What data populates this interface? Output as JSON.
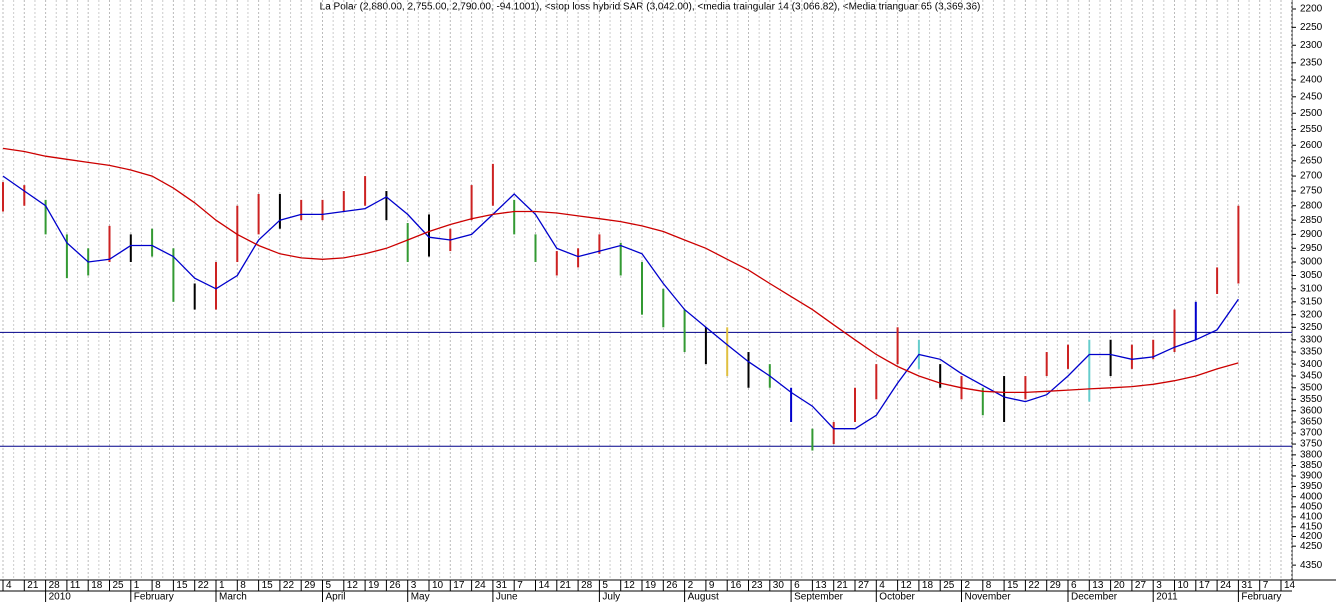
{
  "chart_data": {
    "type": "hilo",
    "title": "La Polar (2,880.00, 2,755.00, 2,790.00, -94.1001), <stop loss hybrid SAR (3,042.00), <media traingular 14 (3,066.82), <Media trianguar 65 (3,369.36)",
    "categories": [
      "4",
      "21",
      "28",
      "11",
      "18",
      "25",
      "1",
      "8",
      "15",
      "22",
      "1",
      "8",
      "15",
      "22",
      "29",
      "5",
      "12",
      "19",
      "26",
      "3",
      "10",
      "17",
      "24",
      "31",
      "7",
      "14",
      "21",
      "28",
      "5",
      "12",
      "19",
      "26",
      "2",
      "9",
      "16",
      "23",
      "30",
      "6",
      "13",
      "21",
      "27",
      "4",
      "12",
      "18",
      "25",
      "2",
      "8",
      "15",
      "22",
      "29",
      "6",
      "13",
      "20",
      "27",
      "3",
      "10",
      "17",
      "24",
      "31",
      "7",
      "14"
    ],
    "months": [
      null,
      null,
      "2010",
      null,
      null,
      null,
      "February",
      null,
      null,
      null,
      "March",
      null,
      null,
      null,
      null,
      "April",
      null,
      null,
      null,
      "May",
      null,
      null,
      null,
      "June",
      null,
      null,
      null,
      null,
      "July",
      null,
      null,
      null,
      "August",
      null,
      null,
      null,
      null,
      "September",
      null,
      null,
      null,
      "October",
      null,
      null,
      null,
      "November",
      null,
      null,
      null,
      null,
      "December",
      null,
      null,
      null,
      "2011",
      null,
      null,
      null,
      "February",
      null,
      null
    ],
    "low": [
      2720,
      2730,
      2780,
      2900,
      2950,
      2870,
      2900,
      2880,
      2950,
      3080,
      3000,
      2800,
      2760,
      2760,
      2780,
      2780,
      2750,
      2700,
      2750,
      2860,
      2830,
      2880,
      2730,
      2660,
      2780,
      2900,
      2960,
      2950,
      2900,
      2930,
      3000,
      3100,
      3180,
      3250,
      3250,
      3350,
      3400,
      3500,
      3680,
      3650,
      3500,
      3400,
      3250,
      3300,
      3400,
      3450,
      3500,
      3450,
      3450,
      3350,
      3320,
      3300,
      3300,
      3320,
      3300,
      3180,
      3150,
      3020,
      2800,
      null,
      null
    ],
    "high": [
      2820,
      2800,
      2900,
      3060,
      3050,
      3000,
      3000,
      2980,
      3150,
      3180,
      3180,
      3000,
      2900,
      2880,
      2850,
      2850,
      2820,
      2800,
      2850,
      3000,
      2980,
      2960,
      2850,
      2800,
      2900,
      3000,
      3050,
      3020,
      2970,
      3050,
      3200,
      3250,
      3350,
      3400,
      3450,
      3500,
      3500,
      3650,
      3780,
      3750,
      3650,
      3550,
      3400,
      3420,
      3500,
      3550,
      3620,
      3650,
      3550,
      3450,
      3420,
      3560,
      3450,
      3420,
      3380,
      3350,
      3300,
      3120,
      3080,
      null,
      null
    ],
    "bar_colors": [
      "#cc2222",
      "#cc2222",
      "#339933",
      "#339933",
      "#339933",
      "#cc2222",
      "#000000",
      "#339933",
      "#339933",
      "#000000",
      "#cc2222",
      "#cc2222",
      "#cc2222",
      "#000000",
      "#cc2222",
      "#cc2222",
      "#cc2222",
      "#cc2222",
      "#000000",
      "#339933",
      "#000000",
      "#cc2222",
      "#cc2222",
      "#cc2222",
      "#339933",
      "#339933",
      "#cc2222",
      "#cc2222",
      "#cc2222",
      "#339933",
      "#339933",
      "#339933",
      "#339933",
      "#000000",
      "#e0c040",
      "#000000",
      "#339933",
      "#0000cc",
      "#339933",
      "#cc2222",
      "#cc2222",
      "#cc2222",
      "#cc2222",
      "#66cccc",
      "#000000",
      "#cc2222",
      "#339933",
      "#000000",
      "#cc2222",
      "#cc2222",
      "#cc2222",
      "#66cccc",
      "#000000",
      "#cc2222",
      "#cc2222",
      "#cc2222",
      "#0000cc",
      "#cc2222",
      "#cc2222",
      null,
      null
    ],
    "series": [
      {
        "color": "#0000cc",
        "values": [
          2700,
          2750,
          2800,
          2930,
          3000,
          2990,
          2940,
          2940,
          2980,
          3060,
          3100,
          3050,
          2920,
          2850,
          2830,
          2830,
          2820,
          2810,
          2770,
          2830,
          2910,
          2920,
          2900,
          2830,
          2760,
          2830,
          2950,
          2980,
          2960,
          2940,
          2970,
          3080,
          3180,
          3250,
          3320,
          3390,
          3450,
          3520,
          3580,
          3680,
          3680,
          3620,
          3480,
          3360,
          3380,
          3440,
          3490,
          3540,
          3560,
          3530,
          3450,
          3360,
          3360,
          3380,
          3370,
          3330,
          3300,
          3260,
          3140,
          null,
          null
        ]
      },
      {
        "color": "#cc0000",
        "values": [
          2610,
          2620,
          2635,
          2645,
          2655,
          2665,
          2680,
          2700,
          2740,
          2790,
          2850,
          2900,
          2940,
          2970,
          2985,
          2990,
          2985,
          2970,
          2950,
          2920,
          2890,
          2865,
          2845,
          2830,
          2820,
          2820,
          2825,
          2835,
          2845,
          2855,
          2870,
          2890,
          2920,
          2950,
          2990,
          3030,
          3080,
          3130,
          3180,
          3240,
          3300,
          3360,
          3410,
          3450,
          3480,
          3500,
          3515,
          3520,
          3520,
          3515,
          3510,
          3505,
          3500,
          3495,
          3485,
          3470,
          3450,
          3420,
          3395,
          null,
          null
        ]
      }
    ],
    "hlines": [
      3270,
      3760
    ],
    "hline_color": "#000088",
    "ylim": [
      2200,
      4430
    ],
    "log": true,
    "reversed": true,
    "grid": true,
    "yticks": [
      2200,
      2250,
      2300,
      2350,
      2400,
      2450,
      2500,
      2550,
      2600,
      2650,
      2700,
      2750,
      2800,
      2850,
      2900,
      2950,
      3000,
      3050,
      3100,
      3150,
      3200,
      3250,
      3300,
      3350,
      3400,
      3450,
      3500,
      3550,
      3600,
      3650,
      3700,
      3750,
      3800,
      3850,
      3900,
      3950,
      4000,
      4050,
      4100,
      4150,
      4200,
      4250,
      4350
    ]
  }
}
